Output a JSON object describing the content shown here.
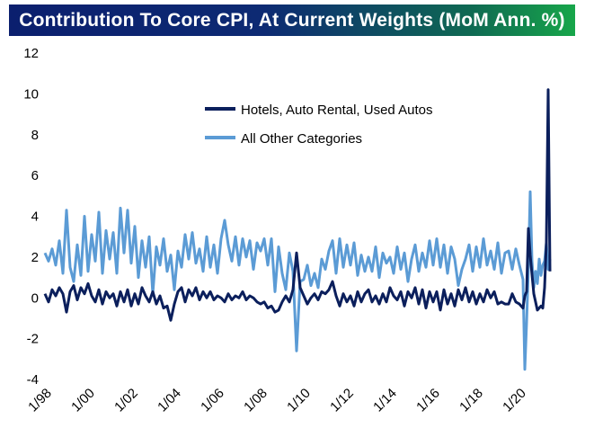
{
  "colors": {
    "series_dark": "#0b1f5c",
    "series_light": "#5b9bd5"
  },
  "chart_data": {
    "type": "line",
    "title": "Contribution To Core CPI, At Current Weights (MoM Ann. %)",
    "xlabel": "",
    "ylabel": "",
    "x_ticks": [
      "1/98",
      "1/00",
      "1/02",
      "1/04",
      "1/06",
      "1/08",
      "1/10",
      "1/12",
      "1/14",
      "1/16",
      "1/18",
      "1/20"
    ],
    "y_ticks": [
      "12",
      "10",
      "8",
      "6",
      "4",
      "2",
      "0",
      "-2",
      "-4"
    ],
    "ylim": [
      -4,
      12
    ],
    "xlim": [
      "1998-01",
      "2021-06"
    ],
    "grid": false,
    "legend_position": "top-center",
    "series": [
      {
        "name": "Hotels, Auto Rental, Used Autos",
        "color": "#0b1f5c",
        "points": [
          [
            "1998-01",
            0.2
          ],
          [
            "1998-03",
            -0.2
          ],
          [
            "1998-05",
            0.4
          ],
          [
            "1998-07",
            0.1
          ],
          [
            "1998-09",
            0.5
          ],
          [
            "1998-11",
            0.2
          ],
          [
            "1999-01",
            -0.7
          ],
          [
            "1999-03",
            0.3
          ],
          [
            "1999-05",
            0.6
          ],
          [
            "1999-07",
            -0.1
          ],
          [
            "1999-09",
            0.5
          ],
          [
            "1999-11",
            0.2
          ],
          [
            "2000-01",
            0.7
          ],
          [
            "2000-03",
            0.1
          ],
          [
            "2000-05",
            -0.2
          ],
          [
            "2000-07",
            0.4
          ],
          [
            "2000-09",
            -0.3
          ],
          [
            "2000-11",
            0.3
          ],
          [
            "2001-01",
            0.0
          ],
          [
            "2001-03",
            0.2
          ],
          [
            "2001-05",
            -0.4
          ],
          [
            "2001-07",
            0.3
          ],
          [
            "2001-09",
            -0.2
          ],
          [
            "2001-11",
            0.4
          ],
          [
            "2002-01",
            -0.4
          ],
          [
            "2002-03",
            0.2
          ],
          [
            "2002-05",
            -0.3
          ],
          [
            "2002-07",
            0.5
          ],
          [
            "2002-09",
            0.1
          ],
          [
            "2002-11",
            -0.2
          ],
          [
            "2003-01",
            0.3
          ],
          [
            "2003-03",
            -0.3
          ],
          [
            "2003-05",
            0.1
          ],
          [
            "2003-07",
            -0.5
          ],
          [
            "2003-09",
            -0.4
          ],
          [
            "2003-11",
            -1.1
          ],
          [
            "2004-01",
            -0.3
          ],
          [
            "2004-03",
            0.3
          ],
          [
            "2004-05",
            0.5
          ],
          [
            "2004-07",
            -0.2
          ],
          [
            "2004-09",
            0.4
          ],
          [
            "2004-11",
            0.1
          ],
          [
            "2005-01",
            0.5
          ],
          [
            "2005-03",
            -0.1
          ],
          [
            "2005-05",
            0.3
          ],
          [
            "2005-07",
            0.0
          ],
          [
            "2005-09",
            0.3
          ],
          [
            "2005-11",
            -0.1
          ],
          [
            "2006-01",
            0.1
          ],
          [
            "2006-03",
            0.0
          ],
          [
            "2006-05",
            -0.2
          ],
          [
            "2006-07",
            0.2
          ],
          [
            "2006-09",
            -0.1
          ],
          [
            "2006-11",
            0.1
          ],
          [
            "2007-01",
            0.0
          ],
          [
            "2007-03",
            0.3
          ],
          [
            "2007-05",
            -0.1
          ],
          [
            "2007-07",
            0.1
          ],
          [
            "2007-09",
            0.0
          ],
          [
            "2007-11",
            -0.2
          ],
          [
            "2008-01",
            -0.3
          ],
          [
            "2008-03",
            -0.2
          ],
          [
            "2008-05",
            -0.5
          ],
          [
            "2008-07",
            -0.4
          ],
          [
            "2008-09",
            -0.7
          ],
          [
            "2008-11",
            -0.6
          ],
          [
            "2009-01",
            -0.2
          ],
          [
            "2009-03",
            0.1
          ],
          [
            "2009-05",
            -0.2
          ],
          [
            "2009-07",
            0.4
          ],
          [
            "2009-09",
            2.2
          ],
          [
            "2009-11",
            0.5
          ],
          [
            "2010-01",
            0.1
          ],
          [
            "2010-03",
            -0.3
          ],
          [
            "2010-05",
            0.0
          ],
          [
            "2010-07",
            0.2
          ],
          [
            "2010-09",
            -0.1
          ],
          [
            "2010-11",
            0.3
          ],
          [
            "2011-01",
            0.2
          ],
          [
            "2011-03",
            0.4
          ],
          [
            "2011-05",
            0.8
          ],
          [
            "2011-07",
            0.1
          ],
          [
            "2011-09",
            -0.4
          ],
          [
            "2011-11",
            0.2
          ],
          [
            "2012-01",
            -0.2
          ],
          [
            "2012-03",
            0.1
          ],
          [
            "2012-05",
            -0.4
          ],
          [
            "2012-07",
            0.3
          ],
          [
            "2012-09",
            -0.2
          ],
          [
            "2012-11",
            0.2
          ],
          [
            "2013-01",
            0.4
          ],
          [
            "2013-03",
            -0.2
          ],
          [
            "2013-05",
            0.1
          ],
          [
            "2013-07",
            -0.3
          ],
          [
            "2013-09",
            0.2
          ],
          [
            "2013-11",
            -0.2
          ],
          [
            "2014-01",
            0.5
          ],
          [
            "2014-03",
            0.1
          ],
          [
            "2014-05",
            -0.1
          ],
          [
            "2014-07",
            0.3
          ],
          [
            "2014-09",
            -0.4
          ],
          [
            "2014-11",
            0.3
          ],
          [
            "2015-01",
            0.0
          ],
          [
            "2015-03",
            0.5
          ],
          [
            "2015-05",
            -0.3
          ],
          [
            "2015-07",
            0.4
          ],
          [
            "2015-09",
            -0.5
          ],
          [
            "2015-11",
            0.3
          ],
          [
            "2016-01",
            -0.2
          ],
          [
            "2016-03",
            0.3
          ],
          [
            "2016-05",
            -0.6
          ],
          [
            "2016-07",
            0.4
          ],
          [
            "2016-09",
            -0.3
          ],
          [
            "2016-11",
            0.2
          ],
          [
            "2017-01",
            -0.4
          ],
          [
            "2017-03",
            0.4
          ],
          [
            "2017-05",
            -0.1
          ],
          [
            "2017-07",
            0.5
          ],
          [
            "2017-09",
            -0.2
          ],
          [
            "2017-11",
            0.3
          ],
          [
            "2018-01",
            -0.3
          ],
          [
            "2018-03",
            0.2
          ],
          [
            "2018-05",
            -0.2
          ],
          [
            "2018-07",
            0.4
          ],
          [
            "2018-09",
            0.0
          ],
          [
            "2018-11",
            0.3
          ],
          [
            "2019-01",
            -0.3
          ],
          [
            "2019-03",
            -0.2
          ],
          [
            "2019-05",
            -0.3
          ],
          [
            "2019-07",
            -0.3
          ],
          [
            "2019-09",
            0.2
          ],
          [
            "2019-11",
            -0.2
          ],
          [
            "2020-01",
            -0.3
          ],
          [
            "2020-03",
            -0.5
          ],
          [
            "2020-04",
            0.1
          ],
          [
            "2020-05",
            0.3
          ],
          [
            "2020-06",
            3.4
          ],
          [
            "2020-07",
            2.1
          ],
          [
            "2020-09",
            0.2
          ],
          [
            "2020-11",
            -0.6
          ],
          [
            "2021-01",
            -0.4
          ],
          [
            "2021-02",
            -0.5
          ],
          [
            "2021-03",
            0.5
          ],
          [
            "2021-04",
            2.7
          ],
          [
            "2021-05",
            10.2
          ],
          [
            "2021-06",
            1.3
          ]
        ]
      },
      {
        "name": "All Other Categories",
        "color": "#5b9bd5",
        "points": [
          [
            "1998-01",
            2.2
          ],
          [
            "1998-03",
            1.8
          ],
          [
            "1998-05",
            2.4
          ],
          [
            "1998-07",
            1.6
          ],
          [
            "1998-09",
            2.8
          ],
          [
            "1998-11",
            1.2
          ],
          [
            "1999-01",
            4.3
          ],
          [
            "1999-03",
            1.5
          ],
          [
            "1999-05",
            0.8
          ],
          [
            "1999-07",
            2.6
          ],
          [
            "1999-09",
            1.1
          ],
          [
            "1999-11",
            4.0
          ],
          [
            "2000-01",
            1.3
          ],
          [
            "2000-03",
            3.1
          ],
          [
            "2000-05",
            1.8
          ],
          [
            "2000-07",
            4.2
          ],
          [
            "2000-09",
            1.2
          ],
          [
            "2000-11",
            3.3
          ],
          [
            "2001-01",
            1.9
          ],
          [
            "2001-03",
            3.2
          ],
          [
            "2001-05",
            1.2
          ],
          [
            "2001-07",
            4.4
          ],
          [
            "2001-09",
            2.2
          ],
          [
            "2001-11",
            4.3
          ],
          [
            "2002-01",
            1.7
          ],
          [
            "2002-03",
            3.5
          ],
          [
            "2002-05",
            1.0
          ],
          [
            "2002-07",
            2.8
          ],
          [
            "2002-09",
            1.5
          ],
          [
            "2002-11",
            3.0
          ],
          [
            "2003-01",
            0.2
          ],
          [
            "2003-03",
            2.5
          ],
          [
            "2003-05",
            1.6
          ],
          [
            "2003-07",
            2.9
          ],
          [
            "2003-09",
            1.3
          ],
          [
            "2003-11",
            2.1
          ],
          [
            "2004-01",
            0.4
          ],
          [
            "2004-03",
            2.3
          ],
          [
            "2004-05",
            1.5
          ],
          [
            "2004-07",
            3.1
          ],
          [
            "2004-09",
            1.9
          ],
          [
            "2004-11",
            3.2
          ],
          [
            "2005-01",
            1.7
          ],
          [
            "2005-03",
            2.4
          ],
          [
            "2005-05",
            1.3
          ],
          [
            "2005-07",
            3.0
          ],
          [
            "2005-09",
            1.5
          ],
          [
            "2005-11",
            2.6
          ],
          [
            "2006-01",
            1.2
          ],
          [
            "2006-03",
            2.9
          ],
          [
            "2006-05",
            3.8
          ],
          [
            "2006-07",
            2.6
          ],
          [
            "2006-09",
            1.8
          ],
          [
            "2006-11",
            3.0
          ],
          [
            "2007-01",
            1.6
          ],
          [
            "2007-03",
            2.9
          ],
          [
            "2007-05",
            2.0
          ],
          [
            "2007-07",
            2.8
          ],
          [
            "2007-09",
            1.4
          ],
          [
            "2007-11",
            2.7
          ],
          [
            "2008-01",
            2.3
          ],
          [
            "2008-03",
            2.9
          ],
          [
            "2008-05",
            1.6
          ],
          [
            "2008-07",
            2.9
          ],
          [
            "2008-09",
            0.3
          ],
          [
            "2008-11",
            2.5
          ],
          [
            "2009-01",
            1.2
          ],
          [
            "2009-03",
            0.4
          ],
          [
            "2009-05",
            2.2
          ],
          [
            "2009-07",
            1.3
          ],
          [
            "2009-09",
            -2.6
          ],
          [
            "2009-11",
            0.8
          ],
          [
            "2010-01",
            0.9
          ],
          [
            "2010-03",
            1.6
          ],
          [
            "2010-05",
            0.6
          ],
          [
            "2010-07",
            1.2
          ],
          [
            "2010-09",
            0.5
          ],
          [
            "2010-11",
            1.9
          ],
          [
            "2011-01",
            1.4
          ],
          [
            "2011-03",
            2.3
          ],
          [
            "2011-05",
            2.8
          ],
          [
            "2011-07",
            1.2
          ],
          [
            "2011-09",
            2.9
          ],
          [
            "2011-11",
            1.5
          ],
          [
            "2012-01",
            2.6
          ],
          [
            "2012-03",
            1.6
          ],
          [
            "2012-05",
            2.7
          ],
          [
            "2012-07",
            1.1
          ],
          [
            "2012-09",
            2.1
          ],
          [
            "2012-11",
            1.3
          ],
          [
            "2013-01",
            2.0
          ],
          [
            "2013-03",
            1.3
          ],
          [
            "2013-05",
            2.5
          ],
          [
            "2013-07",
            1.0
          ],
          [
            "2013-09",
            2.2
          ],
          [
            "2013-11",
            1.7
          ],
          [
            "2014-01",
            2.0
          ],
          [
            "2014-03",
            1.2
          ],
          [
            "2014-05",
            2.5
          ],
          [
            "2014-07",
            1.4
          ],
          [
            "2014-09",
            2.2
          ],
          [
            "2014-11",
            0.8
          ],
          [
            "2015-01",
            1.9
          ],
          [
            "2015-03",
            2.6
          ],
          [
            "2015-05",
            1.3
          ],
          [
            "2015-07",
            2.2
          ],
          [
            "2015-09",
            1.5
          ],
          [
            "2015-11",
            2.8
          ],
          [
            "2016-01",
            1.6
          ],
          [
            "2016-03",
            2.9
          ],
          [
            "2016-05",
            1.5
          ],
          [
            "2016-07",
            2.6
          ],
          [
            "2016-09",
            1.2
          ],
          [
            "2016-11",
            2.5
          ],
          [
            "2017-01",
            1.9
          ],
          [
            "2017-03",
            0.6
          ],
          [
            "2017-05",
            1.4
          ],
          [
            "2017-07",
            1.9
          ],
          [
            "2017-09",
            2.6
          ],
          [
            "2017-11",
            1.3
          ],
          [
            "2018-01",
            2.5
          ],
          [
            "2018-03",
            1.5
          ],
          [
            "2018-05",
            2.9
          ],
          [
            "2018-07",
            1.6
          ],
          [
            "2018-09",
            2.3
          ],
          [
            "2018-11",
            1.4
          ],
          [
            "2019-01",
            2.7
          ],
          [
            "2019-03",
            1.2
          ],
          [
            "2019-05",
            2.2
          ],
          [
            "2019-07",
            2.3
          ],
          [
            "2019-09",
            1.4
          ],
          [
            "2019-11",
            2.4
          ],
          [
            "2020-01",
            1.6
          ],
          [
            "2020-03",
            0.9
          ],
          [
            "2020-04",
            -3.5
          ],
          [
            "2020-05",
            -1.2
          ],
          [
            "2020-06",
            1.5
          ],
          [
            "2020-07",
            5.2
          ],
          [
            "2020-08",
            1.8
          ],
          [
            "2020-09",
            0.5
          ],
          [
            "2020-10",
            1.3
          ],
          [
            "2020-11",
            0.7
          ],
          [
            "2020-12",
            1.9
          ],
          [
            "2021-01",
            1.1
          ],
          [
            "2021-02",
            1.6
          ],
          [
            "2021-03",
            1.8
          ],
          [
            "2021-04",
            2.7
          ],
          [
            "2021-05",
            1.4
          ],
          [
            "2021-06",
            1.9
          ]
        ]
      }
    ]
  }
}
